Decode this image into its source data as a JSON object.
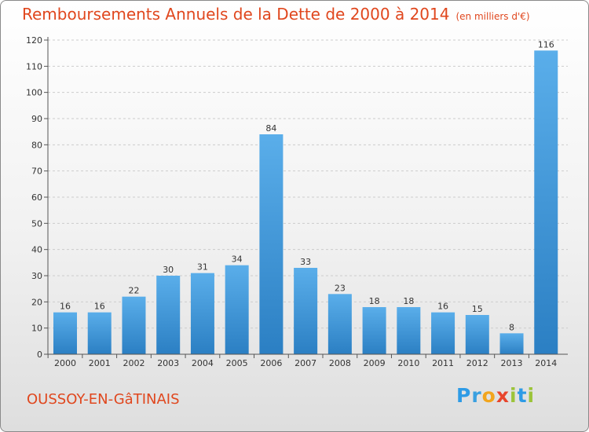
{
  "header": {
    "title": "Remboursements Annuels de la Dette de 2000 à 2014",
    "subtitle": "(en milliers d'€)"
  },
  "footer": {
    "city": "OUSSOY-EN-GâTINAIS",
    "logo": "Proxiti"
  },
  "colors": {
    "title": "#e0471e",
    "bar_light": "#5aaeea",
    "bar_dark": "#2b7fc3",
    "grid": "#cccccc"
  },
  "chart_data": {
    "type": "bar",
    "title": "Remboursements Annuels de la Dette de 2000 à 2014",
    "subtitle": "(en milliers d'€)",
    "categories": [
      "2000",
      "2001",
      "2002",
      "2003",
      "2004",
      "2005",
      "2006",
      "2007",
      "2008",
      "2009",
      "2010",
      "2011",
      "2012",
      "2013",
      "2014"
    ],
    "values": [
      16,
      16,
      22,
      30,
      31,
      34,
      84,
      33,
      23,
      18,
      18,
      16,
      15,
      8,
      116
    ],
    "ylim": [
      0,
      120
    ],
    "yticks": [
      0,
      10,
      20,
      30,
      40,
      50,
      60,
      70,
      80,
      90,
      100,
      110,
      120
    ],
    "grid": true,
    "legend": "none"
  }
}
